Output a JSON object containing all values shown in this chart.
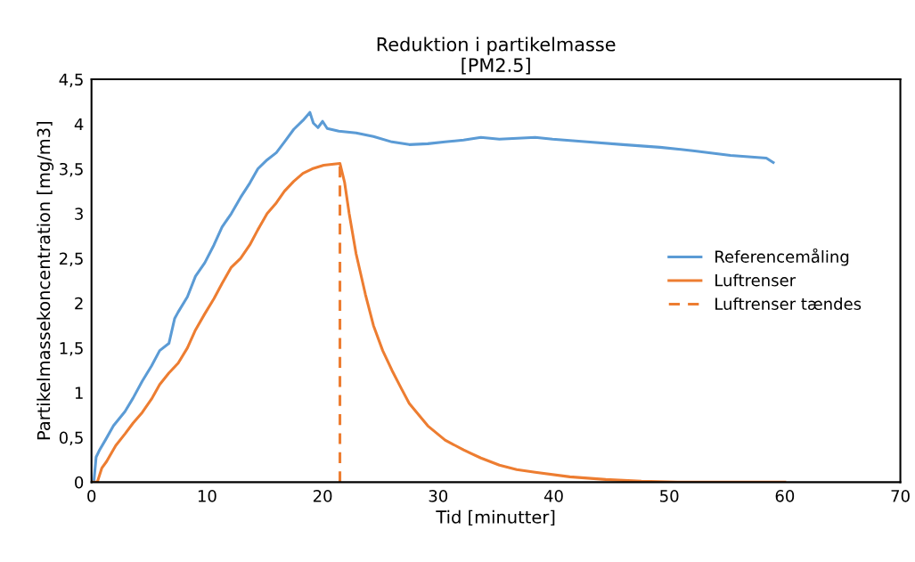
{
  "chart_data": {
    "type": "line",
    "title": "Reduktion i partikelmasse\n[PM2.5]",
    "xlabel": "Tid [minutter]",
    "ylabel": "Partikelmassekoncentration [mg/m3]",
    "xlim": [
      0,
      70
    ],
    "xticks": [
      0,
      10,
      20,
      30,
      40,
      50,
      60,
      70
    ],
    "ylim": [
      0,
      4.5
    ],
    "yticks": [
      {
        "value": 0,
        "label": "0"
      },
      {
        "value": 0.5,
        "label": "0,5"
      },
      {
        "value": 1,
        "label": "1"
      },
      {
        "value": 1.5,
        "label": "1,5"
      },
      {
        "value": 2,
        "label": "2"
      },
      {
        "value": 2.5,
        "label": "2,5"
      },
      {
        "value": 3,
        "label": "3"
      },
      {
        "value": 3.5,
        "label": "3,5"
      },
      {
        "value": 4,
        "label": "4"
      },
      {
        "value": 4.5,
        "label": "4,5"
      }
    ],
    "grid": false,
    "legend": "right",
    "marker": "none",
    "series": [
      {
        "name": "Referencemåling",
        "color": "#5b9bd5",
        "line_style": "solid",
        "x": [
          0,
          0.2,
          0.4,
          0.7,
          1.2,
          1.9,
          2.9,
          3.6,
          4.4,
          5.2,
          5.9,
          6.7,
          7.2,
          7.5,
          8.3,
          9.0,
          9.8,
          10.6,
          11.3,
          12.1,
          12.9,
          13.7,
          14.4,
          15.2,
          16,
          16.7,
          17.5,
          18.3,
          18.9,
          19.2,
          19.6,
          20,
          20.4,
          21.4,
          22.9,
          24.4,
          26,
          27.5,
          29.1,
          30.6,
          32.2,
          33.7,
          35.3,
          38.4,
          39.9,
          42.9,
          46,
          49.2,
          52.2,
          55.3,
          58.4,
          59
        ],
        "values": [
          0,
          0,
          0.28,
          0.36,
          0.47,
          0.63,
          0.79,
          0.94,
          1.13,
          1.3,
          1.47,
          1.55,
          1.83,
          1.9,
          2.07,
          2.3,
          2.45,
          2.65,
          2.85,
          3.0,
          3.18,
          3.34,
          3.5,
          3.6,
          3.68,
          3.8,
          3.94,
          4.04,
          4.13,
          4.01,
          3.96,
          4.03,
          3.95,
          3.92,
          3.9,
          3.86,
          3.8,
          3.77,
          3.78,
          3.8,
          3.82,
          3.85,
          3.83,
          3.85,
          3.83,
          3.8,
          3.77,
          3.74,
          3.7,
          3.65,
          3.62,
          3.57
        ]
      },
      {
        "name": "Luftrenser",
        "color": "#ed7d31",
        "line_style": "solid",
        "x": [
          0,
          0.5,
          0.9,
          1.3,
          2.1,
          2.9,
          3.6,
          4.4,
          5.2,
          5.9,
          6.7,
          7.5,
          8.3,
          9,
          9.8,
          10.6,
          11.3,
          12.1,
          12.9,
          13.7,
          14.4,
          15.2,
          16,
          16.7,
          17.5,
          18.3,
          19.1,
          20.1,
          21.5,
          21.9,
          22.3,
          22.9,
          23.7,
          24.4,
          25.2,
          26,
          26.8,
          27.5,
          29.1,
          30.6,
          32.2,
          33.7,
          35.3,
          36.8,
          38.4,
          41.4,
          44.5,
          47.6,
          50.7,
          60
        ],
        "values": [
          0,
          0,
          0.16,
          0.23,
          0.41,
          0.54,
          0.66,
          0.78,
          0.93,
          1.09,
          1.22,
          1.33,
          1.5,
          1.7,
          1.88,
          2.05,
          2.22,
          2.4,
          2.5,
          2.65,
          2.82,
          3.0,
          3.12,
          3.25,
          3.36,
          3.45,
          3.5,
          3.54,
          3.56,
          3.35,
          3.0,
          2.55,
          2.1,
          1.75,
          1.47,
          1.25,
          1.05,
          0.88,
          0.63,
          0.47,
          0.36,
          0.27,
          0.19,
          0.14,
          0.11,
          0.06,
          0.03,
          0.01,
          0,
          0
        ]
      },
      {
        "name": "Luftrenser tændes",
        "color": "#ed7d31",
        "line_style": "dashed",
        "x": [
          21.5,
          21.5
        ],
        "values": [
          0,
          3.56
        ]
      }
    ]
  }
}
